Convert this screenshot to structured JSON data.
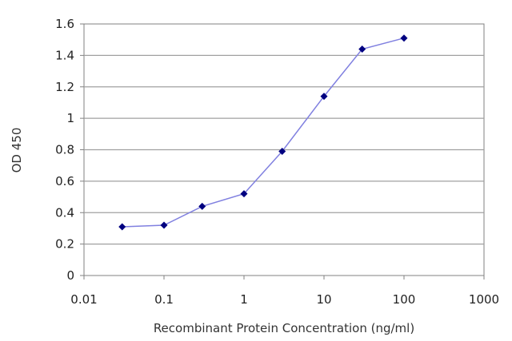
{
  "chart_data": {
    "type": "line",
    "xlabel": "Recombinant Protein Concentration (ng/ml)",
    "ylabel": "OD 450",
    "xscale": "log",
    "xlim": [
      0.01,
      1000
    ],
    "ylim": [
      0,
      1.6
    ],
    "xticks": [
      0.01,
      0.1,
      1,
      10,
      100,
      1000
    ],
    "xtick_labels": [
      "0.01",
      "0.1",
      "1",
      "10",
      "100",
      "1000"
    ],
    "yticks": [
      0,
      0.2,
      0.4,
      0.6,
      0.8,
      1,
      1.2,
      1.4,
      1.6
    ],
    "ytick_labels": [
      "0",
      "0.2",
      "0.4",
      "0.6",
      "0.8",
      "1",
      "1.2",
      "1.4",
      "1.6"
    ],
    "grid": "horizontal",
    "legend": "none",
    "series": [
      {
        "x": [
          0.03,
          0.1,
          0.3,
          1,
          3,
          10,
          30,
          100
        ],
        "y": [
          0.31,
          0.32,
          0.44,
          0.52,
          0.79,
          1.14,
          1.44,
          1.51
        ]
      }
    ],
    "colors": {
      "line": "#8080e0",
      "marker": "#000080",
      "grid": "#a0a0a0",
      "axis": "#808080"
    }
  }
}
